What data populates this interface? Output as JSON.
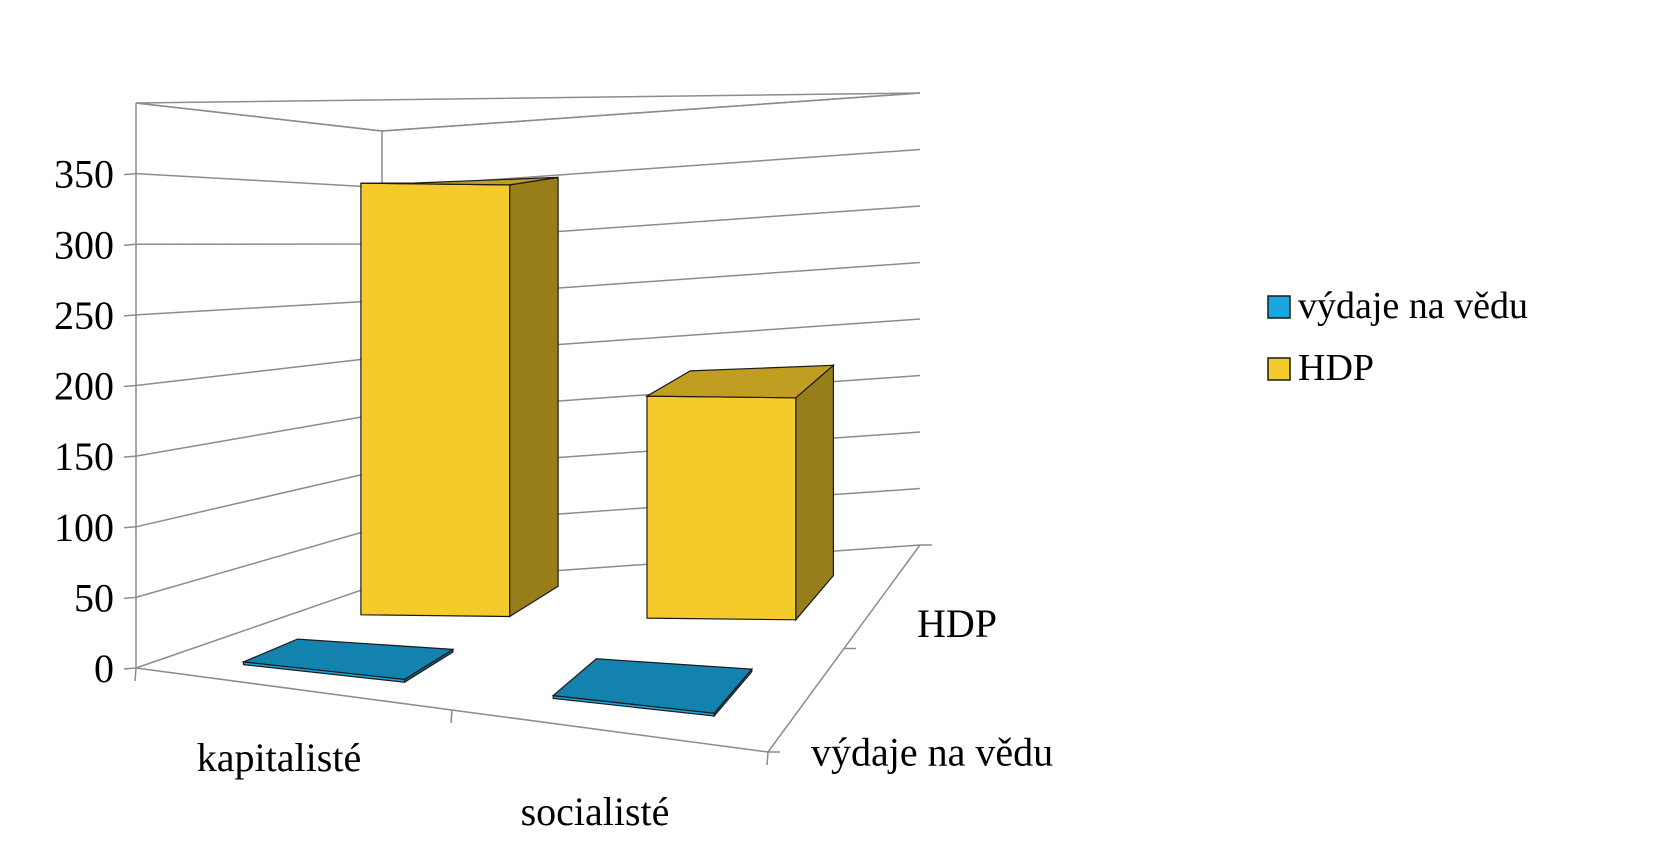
{
  "chart_data": {
    "type": "bar",
    "subtype": "3d-column",
    "categories": [
      "kapitalisté",
      "socialisté"
    ],
    "series": [
      {
        "name": "výdaje na vědu",
        "values": [
          2,
          2
        ],
        "color": "#1aa7e0"
      },
      {
        "name": "HDP",
        "values": [
          350,
          180
        ],
        "color": "#f5cb2c"
      }
    ],
    "y_ticks": [
      "0",
      "50",
      "100",
      "150",
      "200",
      "250",
      "300",
      "350"
    ],
    "ylim": [
      0,
      400
    ],
    "grid": true,
    "legend_position": "right"
  }
}
